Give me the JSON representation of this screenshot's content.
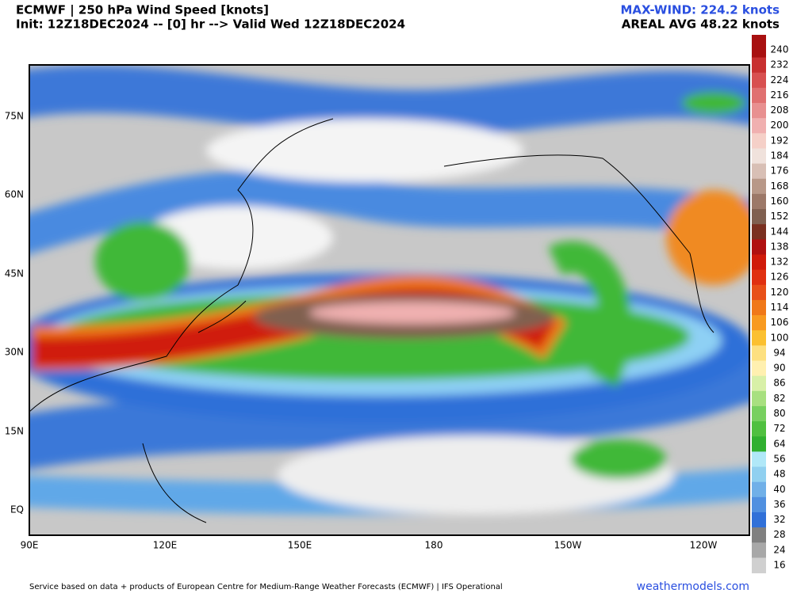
{
  "header": {
    "title": "ECMWF | 250 hPa Wind Speed [knots]",
    "subtitle": "Init: 12Z18DEC2024 -- [0] hr --> Valid Wed 12Z18DEC2024",
    "max_wind": "MAX-WIND: 224.2 knots",
    "areal_avg": "AREAL AVG 48.22 knots"
  },
  "map": {
    "lat_labels": [
      "75N",
      "60N",
      "45N",
      "30N",
      "15N",
      "EQ"
    ],
    "lon_labels": [
      "90E",
      "120E",
      "150E",
      "180",
      "150W",
      "120W"
    ]
  },
  "colorbar": {
    "values": [
      240,
      232,
      224,
      216,
      208,
      200,
      192,
      184,
      176,
      168,
      160,
      152,
      144,
      138,
      132,
      126,
      120,
      114,
      106,
      100,
      94,
      90,
      86,
      82,
      80,
      72,
      64,
      56,
      48,
      40,
      36,
      32,
      28,
      24,
      16
    ],
    "colors": [
      "#a81010",
      "#c83030",
      "#d85050",
      "#e07070",
      "#e89090",
      "#f0b0b0",
      "#f5d0c8",
      "#f0e2dc",
      "#d8bfb5",
      "#b89888",
      "#9c7868",
      "#806050",
      "#7a3020",
      "#b01010",
      "#d01a0a",
      "#e03010",
      "#e85018",
      "#f07818",
      "#f89a20",
      "#fbc030",
      "#fde080",
      "#fff0b0",
      "#d8f0a8",
      "#a8e080",
      "#78d060",
      "#50c040",
      "#30b030",
      "#b0e8f8",
      "#90d0f0",
      "#70b0e8",
      "#5090e0",
      "#3070d8",
      "#808080",
      "#a8a8a8",
      "#d0d0d0"
    ]
  },
  "footer": {
    "credit": "Service based on data + products of European Centre for Medium-Range Weather Forecasts (ECMWF) | IFS Operational",
    "site": "weathermodels.com"
  }
}
